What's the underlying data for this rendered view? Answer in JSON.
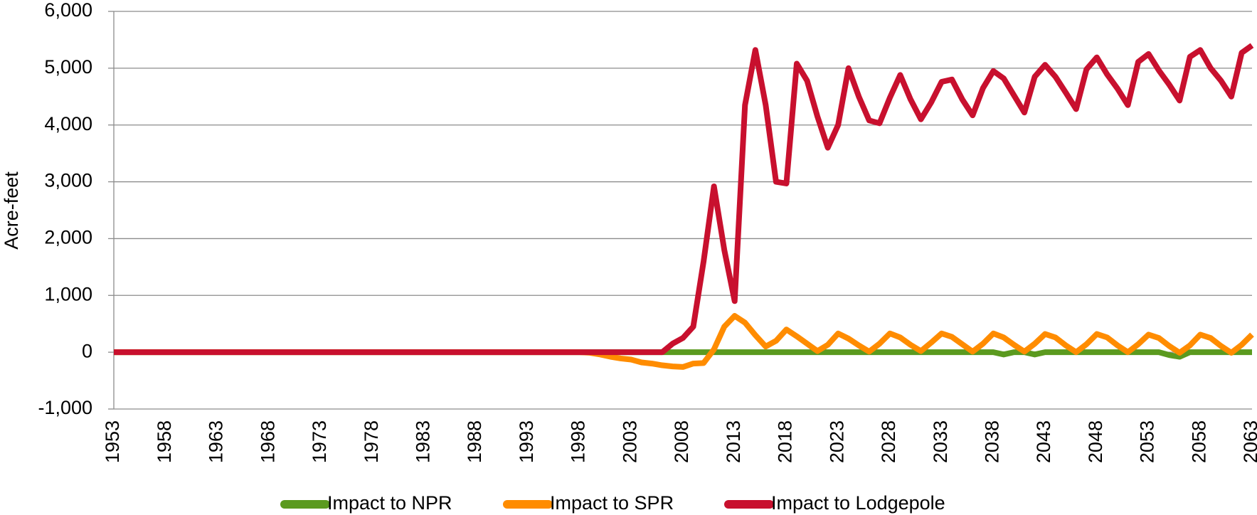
{
  "chart_data": {
    "type": "line",
    "y_label": "Acre-feet",
    "x": [
      1953,
      1954,
      1955,
      1956,
      1957,
      1958,
      1959,
      1960,
      1961,
      1962,
      1963,
      1964,
      1965,
      1966,
      1967,
      1968,
      1969,
      1970,
      1971,
      1972,
      1973,
      1974,
      1975,
      1976,
      1977,
      1978,
      1979,
      1980,
      1981,
      1982,
      1983,
      1984,
      1985,
      1986,
      1987,
      1988,
      1989,
      1990,
      1991,
      1992,
      1993,
      1994,
      1995,
      1996,
      1997,
      1998,
      1999,
      2000,
      2001,
      2002,
      2003,
      2004,
      2005,
      2006,
      2007,
      2008,
      2009,
      2010,
      2011,
      2012,
      2013,
      2014,
      2015,
      2016,
      2017,
      2018,
      2019,
      2020,
      2021,
      2022,
      2023,
      2024,
      2025,
      2026,
      2027,
      2028,
      2029,
      2030,
      2031,
      2032,
      2033,
      2034,
      2035,
      2036,
      2037,
      2038,
      2039,
      2040,
      2041,
      2042,
      2043,
      2044,
      2045,
      2046,
      2047,
      2048,
      2049,
      2050,
      2051,
      2052,
      2053,
      2054,
      2055,
      2056,
      2057,
      2058,
      2059,
      2060,
      2061,
      2062,
      2063
    ],
    "xlim": [
      1953,
      2063
    ],
    "xticks": [
      1953,
      1958,
      1963,
      1968,
      1973,
      1978,
      1983,
      1988,
      1993,
      1998,
      2003,
      2008,
      2013,
      2018,
      2023,
      2028,
      2033,
      2038,
      2043,
      2048,
      2053,
      2058,
      2063
    ],
    "ylim": [
      -1000,
      6000
    ],
    "yticks": [
      {
        "value": -1000,
        "label": "-1,000"
      },
      0,
      {
        "value": 1000,
        "label": "1,000"
      },
      {
        "value": 2000,
        "label": "2,000"
      },
      {
        "value": 3000,
        "label": "3,000"
      },
      {
        "value": 4000,
        "label": "4,000"
      },
      {
        "value": 5000,
        "label": "5,000"
      },
      {
        "value": 6000,
        "label": "6,000"
      }
    ],
    "grid": true,
    "legend": "bottom",
    "series": [
      {
        "name": "Impact to NPR",
        "color": "#5b9a1f",
        "values": [
          0,
          0,
          0,
          0,
          0,
          0,
          0,
          0,
          0,
          0,
          0,
          0,
          0,
          0,
          0,
          0,
          0,
          0,
          0,
          0,
          0,
          0,
          0,
          0,
          0,
          0,
          0,
          0,
          0,
          0,
          0,
          0,
          0,
          0,
          0,
          0,
          0,
          0,
          0,
          0,
          0,
          0,
          0,
          0,
          0,
          0,
          0,
          0,
          0,
          0,
          0,
          0,
          0,
          0,
          0,
          0,
          0,
          0,
          0,
          0,
          0,
          0,
          0,
          0,
          0,
          0,
          0,
          0,
          0,
          0,
          0,
          0,
          0,
          0,
          0,
          0,
          0,
          0,
          0,
          0,
          0,
          0,
          0,
          0,
          0,
          0,
          -40,
          0,
          0,
          -40,
          0,
          0,
          0,
          0,
          0,
          0,
          0,
          0,
          0,
          0,
          0,
          0,
          -50,
          -80,
          0,
          0,
          0,
          0,
          0,
          0,
          0
        ]
      },
      {
        "name": "Impact to SPR",
        "color": "#ff8c00",
        "values": [
          0,
          0,
          0,
          0,
          0,
          0,
          0,
          0,
          0,
          0,
          0,
          0,
          0,
          0,
          0,
          0,
          0,
          0,
          0,
          0,
          0,
          0,
          0,
          0,
          0,
          0,
          0,
          0,
          0,
          0,
          0,
          0,
          0,
          0,
          0,
          0,
          0,
          0,
          0,
          0,
          0,
          0,
          0,
          0,
          0,
          0,
          -10,
          -40,
          -80,
          -110,
          -130,
          -180,
          -200,
          -230,
          -250,
          -260,
          -200,
          -190,
          50,
          450,
          640,
          520,
          300,
          100,
          200,
          400,
          280,
          150,
          20,
          130,
          330,
          240,
          120,
          10,
          150,
          330,
          260,
          130,
          20,
          170,
          330,
          270,
          140,
          10,
          150,
          330,
          260,
          130,
          10,
          150,
          320,
          260,
          120,
          0,
          140,
          320,
          260,
          120,
          0,
          140,
          310,
          250,
          110,
          -10,
          120,
          310,
          250,
          110,
          -10,
          130,
          310
        ]
      },
      {
        "name": "Impact to Lodgepole",
        "color": "#c8102e",
        "values": [
          0,
          0,
          0,
          0,
          0,
          0,
          0,
          0,
          0,
          0,
          0,
          0,
          0,
          0,
          0,
          0,
          0,
          0,
          0,
          0,
          0,
          0,
          0,
          0,
          0,
          0,
          0,
          0,
          0,
          0,
          0,
          0,
          0,
          0,
          0,
          0,
          0,
          0,
          0,
          0,
          0,
          0,
          0,
          0,
          0,
          0,
          0,
          0,
          0,
          0,
          0,
          0,
          0,
          0,
          150,
          250,
          450,
          1600,
          2920,
          1800,
          900,
          4350,
          5320,
          4350,
          3000,
          2970,
          5080,
          4780,
          4150,
          3600,
          4000,
          5000,
          4500,
          4080,
          4030,
          4480,
          4880,
          4450,
          4100,
          4400,
          4760,
          4800,
          4450,
          4170,
          4650,
          4950,
          4820,
          4520,
          4220,
          4850,
          5060,
          4850,
          4570,
          4280,
          4980,
          5190,
          4890,
          4640,
          4350,
          5110,
          5250,
          4960,
          4710,
          4430,
          5200,
          5320,
          5000,
          4780,
          4500,
          5270,
          5400
        ]
      }
    ]
  }
}
